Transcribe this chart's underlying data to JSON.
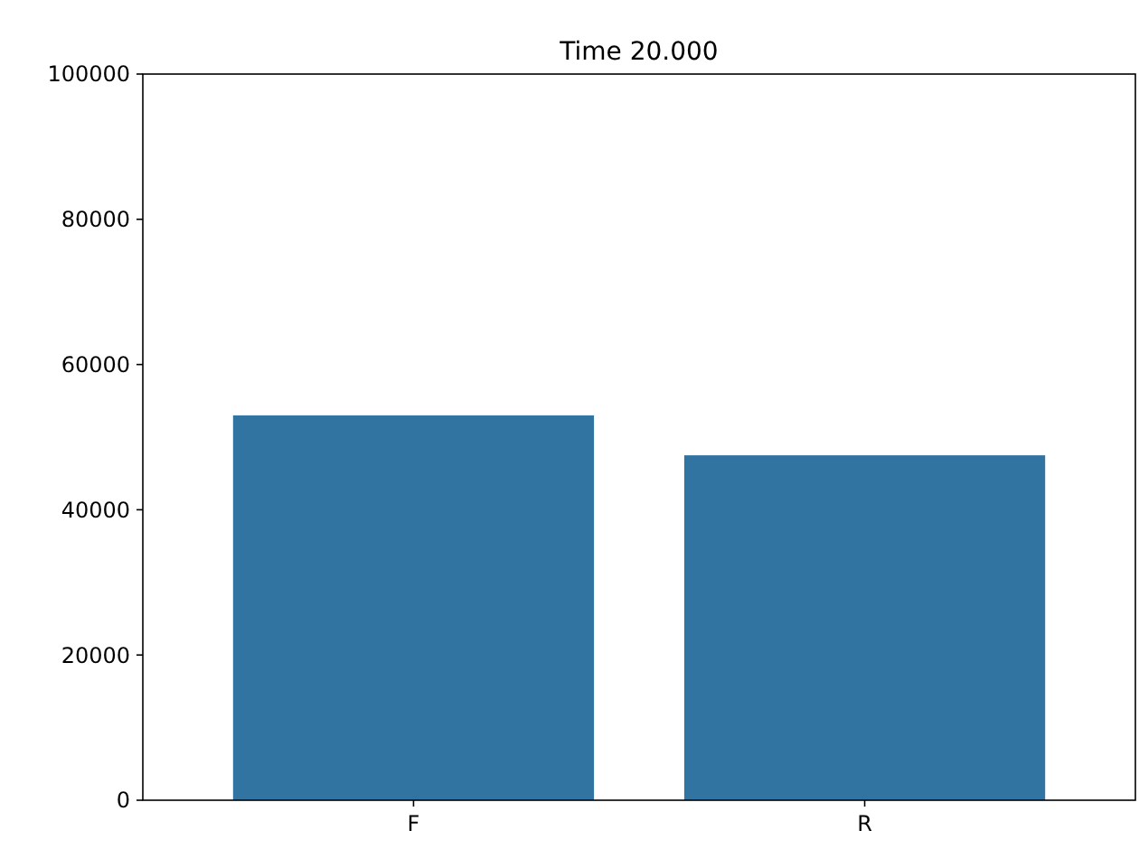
{
  "chart_data": {
    "type": "bar",
    "title": "Time  20.000",
    "categories": [
      "F",
      "R"
    ],
    "values": [
      53000,
      47500
    ],
    "color": "#3274a1",
    "ylim": [
      0,
      100000
    ],
    "yticks": [
      0,
      20000,
      40000,
      60000,
      80000,
      100000
    ],
    "grid": false
  }
}
